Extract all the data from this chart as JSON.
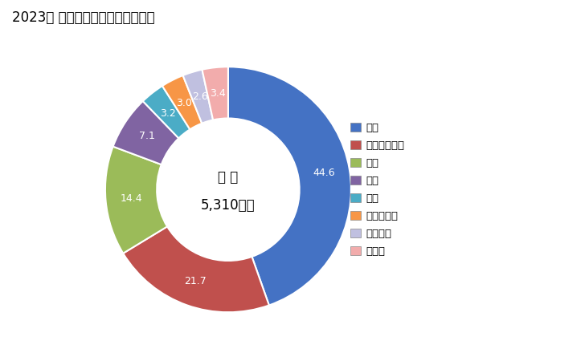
{
  "title": "2023年 輸出相手国のシェア（％）",
  "center_label_line1": "総 額",
  "center_label_line2": "5,310万円",
  "labels": [
    "米国",
    "インドネシア",
    "台湾",
    "韓国",
    "タイ",
    "マレーシア",
    "ベトナム",
    "その他"
  ],
  "values": [
    44.6,
    21.7,
    14.4,
    7.1,
    3.2,
    3.0,
    2.6,
    3.4
  ],
  "colors": [
    "#4472C4",
    "#C0504D",
    "#9BBB59",
    "#8064A2",
    "#4BACC6",
    "#F79646",
    "#C0C0E0",
    "#F2ACAC"
  ],
  "donut_width": 0.42,
  "figsize": [
    7.28,
    4.5
  ],
  "dpi": 100
}
